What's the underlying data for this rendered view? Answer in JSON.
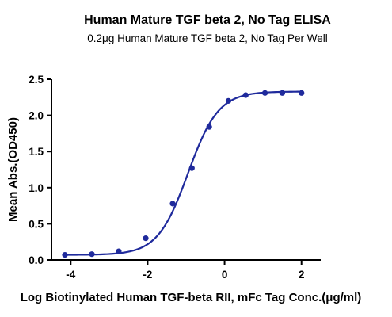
{
  "chart_data": {
    "type": "scatter",
    "title": "Human Mature TGF beta 2, No Tag ELISA",
    "subtitle": "0.2μg Human Mature TGF beta 2, No Tag Per Well",
    "xlabel": "Log Biotinylated Human TGF-beta RII, mFc Tag Conc.(μg/ml)",
    "ylabel": "Mean Abs.(OD450)",
    "xlim": [
      -4.5,
      2.5
    ],
    "ylim": [
      0,
      2.5
    ],
    "xticks": [
      -4,
      -2,
      0,
      2
    ],
    "yticks": [
      0.0,
      0.5,
      1.0,
      1.5,
      2.0,
      2.5
    ],
    "xtick_labels": [
      "-4",
      "-2",
      "0",
      "2"
    ],
    "ytick_labels": [
      "0.0",
      "0.5",
      "1.0",
      "1.5",
      "2.0",
      "2.5"
    ],
    "grid": false,
    "legend": "none",
    "color": "#1f2a9c",
    "series": [
      {
        "points": [
          {
            "x": -4.15,
            "y": 0.07
          },
          {
            "x": -3.45,
            "y": 0.08
          },
          {
            "x": -2.75,
            "y": 0.12
          },
          {
            "x": -2.05,
            "y": 0.3
          },
          {
            "x": -1.35,
            "y": 0.78
          },
          {
            "x": -0.85,
            "y": 1.27
          },
          {
            "x": -0.4,
            "y": 1.84
          },
          {
            "x": 0.1,
            "y": 2.2
          },
          {
            "x": 0.55,
            "y": 2.28
          },
          {
            "x": 1.05,
            "y": 2.31
          },
          {
            "x": 1.5,
            "y": 2.31
          },
          {
            "x": 2.0,
            "y": 2.31
          }
        ],
        "fit": {
          "type": "4PL",
          "bottom": 0.07,
          "top": 2.33,
          "logEC50": -0.95,
          "hill": 1.1
        }
      }
    ]
  }
}
